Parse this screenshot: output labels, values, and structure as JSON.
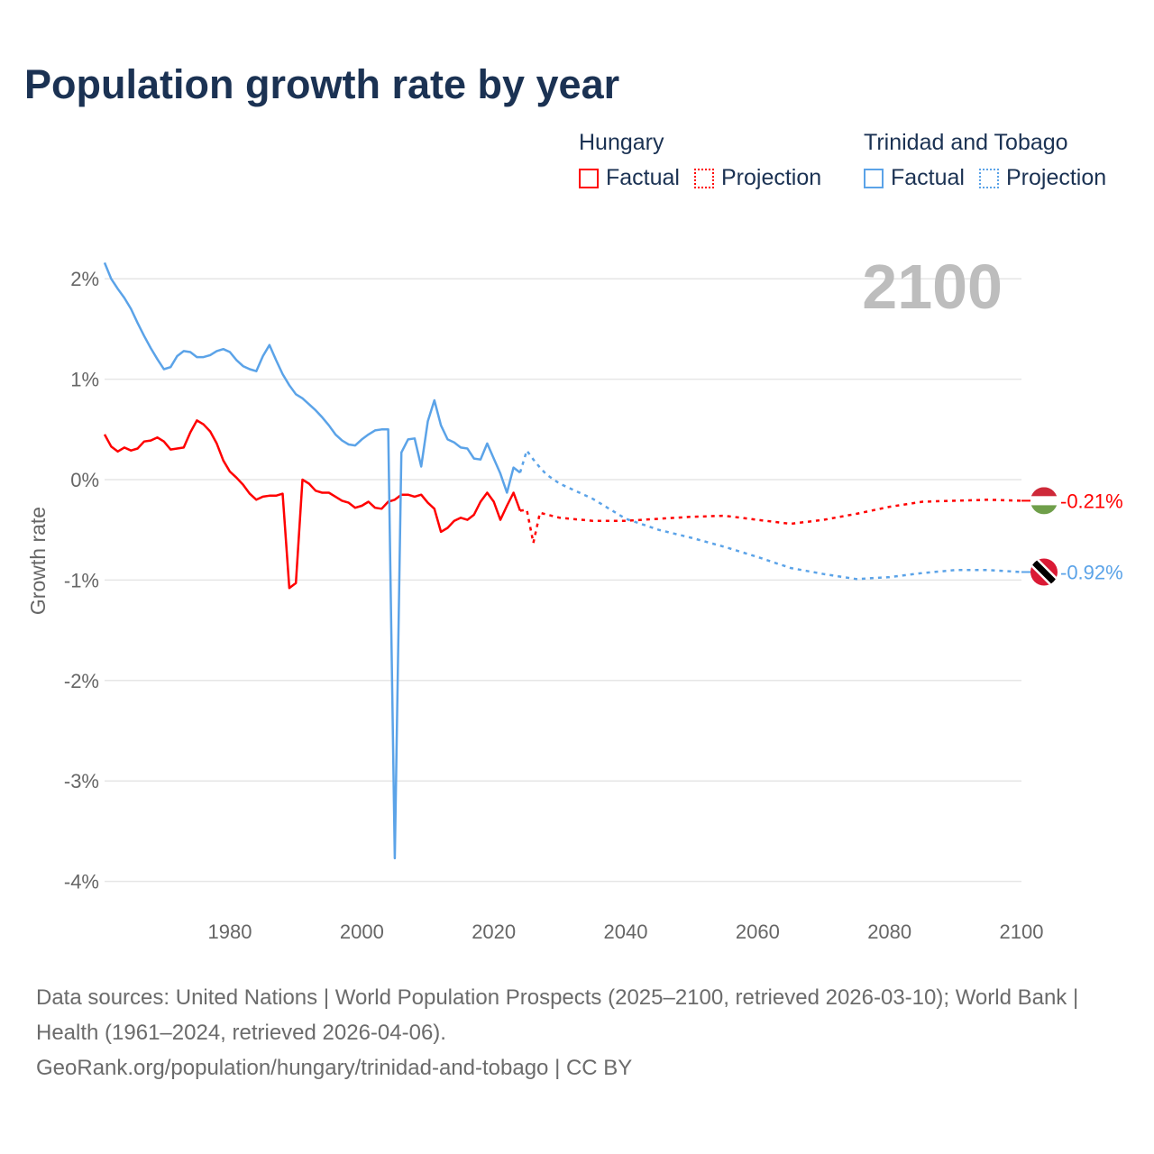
{
  "title": "Population growth rate by year",
  "legend": {
    "groups": [
      {
        "name": "Hungary",
        "color": "#ff0000",
        "factual": "Factual",
        "projection": "Projection"
      },
      {
        "name": "Trinidad and Tobago",
        "color": "#5ba3e8",
        "factual": "Factual",
        "projection": "Projection"
      }
    ]
  },
  "year_display": "2100",
  "footer": {
    "sources": "Data sources: United Nations | World Population Prospects (2025–2100, retrieved 2026-03-10); World Bank | Health (1961–2024, retrieved 2026-04-06).",
    "attribution": "GeoRank.org/population/hungary/trinidad-and-tobago | CC BY"
  },
  "chart_data": {
    "type": "line",
    "title": "Population growth rate by year",
    "xlabel": "",
    "ylabel": "Growth rate",
    "xlim": [
      1961,
      2100
    ],
    "ylim": [
      -4.2,
      2.2
    ],
    "xticks": [
      1980,
      2000,
      2020,
      2040,
      2060,
      2080,
      2100
    ],
    "yticks": [
      2,
      1,
      0,
      -1,
      -2,
      -3,
      -4
    ],
    "ytick_labels": [
      "2%",
      "1%",
      "0%",
      "-1%",
      "-2%",
      "-3%",
      "-4%"
    ],
    "grid": true,
    "legend_position": "top-right",
    "series": [
      {
        "name": "Hungary",
        "color": "#ff0000",
        "end_label": "-0.21%",
        "factual": {
          "x": [
            1961,
            1962,
            1963,
            1964,
            1965,
            1966,
            1967,
            1968,
            1969,
            1970,
            1971,
            1972,
            1973,
            1974,
            1975,
            1976,
            1977,
            1978,
            1979,
            1980,
            1981,
            1982,
            1983,
            1984,
            1985,
            1986,
            1987,
            1988,
            1989,
            1990,
            1991,
            1992,
            1993,
            1994,
            1995,
            1996,
            1997,
            1998,
            1999,
            2000,
            2001,
            2002,
            2003,
            2004,
            2005,
            2006,
            2007,
            2008,
            2009,
            2010,
            2011,
            2012,
            2013,
            2014,
            2015,
            2016,
            2017,
            2018,
            2019,
            2020,
            2021,
            2022,
            2023,
            2024
          ],
          "y": [
            0.45,
            0.33,
            0.28,
            0.32,
            0.29,
            0.31,
            0.38,
            0.39,
            0.42,
            0.38,
            0.3,
            0.31,
            0.32,
            0.47,
            0.59,
            0.55,
            0.48,
            0.36,
            0.19,
            0.08,
            0.02,
            -0.05,
            -0.14,
            -0.2,
            -0.17,
            -0.16,
            -0.16,
            -0.14,
            -1.08,
            -1.03,
            0.0,
            -0.04,
            -0.11,
            -0.13,
            -0.13,
            -0.17,
            -0.21,
            -0.23,
            -0.28,
            -0.26,
            -0.22,
            -0.28,
            -0.29,
            -0.22,
            -0.2,
            -0.15,
            -0.15,
            -0.17,
            -0.15,
            -0.23,
            -0.29,
            -0.52,
            -0.48,
            -0.41,
            -0.38,
            -0.4,
            -0.35,
            -0.22,
            -0.13,
            -0.22,
            -0.4,
            -0.26,
            -0.13,
            -0.31
          ]
        },
        "projection": {
          "x": [
            2024,
            2025,
            2026,
            2027,
            2030,
            2035,
            2040,
            2045,
            2050,
            2055,
            2060,
            2065,
            2070,
            2075,
            2080,
            2085,
            2090,
            2095,
            2100
          ],
          "y": [
            -0.31,
            -0.3,
            -0.63,
            -0.33,
            -0.38,
            -0.41,
            -0.41,
            -0.39,
            -0.37,
            -0.36,
            -0.4,
            -0.44,
            -0.4,
            -0.34,
            -0.27,
            -0.22,
            -0.21,
            -0.2,
            -0.21
          ]
        }
      },
      {
        "name": "Trinidad and Tobago",
        "color": "#5ba3e8",
        "end_label": "-0.92%",
        "factual": {
          "x": [
            1961,
            1962,
            1963,
            1964,
            1965,
            1966,
            1967,
            1968,
            1969,
            1970,
            1971,
            1972,
            1973,
            1974,
            1975,
            1976,
            1977,
            1978,
            1979,
            1980,
            1981,
            1982,
            1983,
            1984,
            1985,
            1986,
            1987,
            1988,
            1989,
            1990,
            1991,
            1992,
            1993,
            1994,
            1995,
            1996,
            1997,
            1998,
            1999,
            2000,
            2001,
            2002,
            2003,
            2004,
            2005,
            2006,
            2007,
            2008,
            2009,
            2010,
            2011,
            2012,
            2013,
            2014,
            2015,
            2016,
            2017,
            2018,
            2019,
            2020,
            2021,
            2022,
            2023,
            2024
          ],
          "y": [
            2.16,
            2.0,
            1.9,
            1.81,
            1.7,
            1.56,
            1.43,
            1.31,
            1.2,
            1.1,
            1.12,
            1.23,
            1.28,
            1.27,
            1.22,
            1.22,
            1.24,
            1.28,
            1.3,
            1.27,
            1.19,
            1.13,
            1.1,
            1.08,
            1.23,
            1.34,
            1.19,
            1.05,
            0.94,
            0.85,
            0.81,
            0.75,
            0.69,
            0.62,
            0.54,
            0.45,
            0.39,
            0.35,
            0.34,
            0.4,
            0.45,
            0.49,
            0.5,
            0.5,
            -3.77,
            0.27,
            0.4,
            0.41,
            0.13,
            0.58,
            0.79,
            0.54,
            0.4,
            0.37,
            0.32,
            0.31,
            0.21,
            0.2,
            0.36,
            0.21,
            0.06,
            -0.13,
            0.12,
            0.07
          ]
        },
        "projection": {
          "x": [
            2024,
            2025,
            2026,
            2027,
            2028,
            2030,
            2035,
            2040,
            2045,
            2050,
            2055,
            2060,
            2065,
            2070,
            2075,
            2080,
            2085,
            2090,
            2095,
            2100
          ],
          "y": [
            0.07,
            0.29,
            0.2,
            0.12,
            0.05,
            -0.04,
            -0.19,
            -0.39,
            -0.5,
            -0.58,
            -0.67,
            -0.77,
            -0.88,
            -0.94,
            -0.99,
            -0.97,
            -0.93,
            -0.9,
            -0.9,
            -0.92
          ]
        }
      }
    ]
  }
}
